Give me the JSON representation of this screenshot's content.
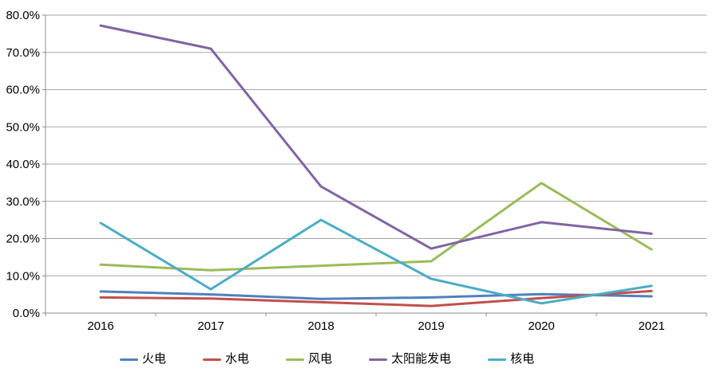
{
  "chart_data": {
    "type": "line",
    "title": "",
    "xlabel": "",
    "ylabel": "",
    "grid": true,
    "legend_position": "bottom",
    "categories": [
      "2016",
      "2017",
      "2018",
      "2019",
      "2020",
      "2021"
    ],
    "series": [
      {
        "name": "火电",
        "color": "#4F81BD",
        "values": [
          5.8,
          5.0,
          3.8,
          4.2,
          5.1,
          4.5
        ]
      },
      {
        "name": "水电",
        "color": "#C0504D",
        "values": [
          4.2,
          3.9,
          2.9,
          1.9,
          4.0,
          5.9
        ]
      },
      {
        "name": "风电",
        "color": "#9BBB59",
        "values": [
          13.0,
          11.5,
          12.7,
          13.9,
          34.9,
          17.1
        ]
      },
      {
        "name": "太阳能发电",
        "color": "#8064A2",
        "values": [
          77.2,
          71.0,
          34.0,
          17.3,
          24.4,
          21.3
        ]
      },
      {
        "name": "核电",
        "color": "#4BACC6",
        "values": [
          24.2,
          6.4,
          25.0,
          9.2,
          2.6,
          7.3
        ]
      }
    ],
    "y_axis": {
      "min": 0,
      "max": 80,
      "step": 10,
      "tick_labels": [
        "0.0%",
        "10.0%",
        "20.0%",
        "30.0%",
        "40.0%",
        "50.0%",
        "60.0%",
        "70.0%",
        "80.0%"
      ]
    },
    "colors": {
      "gridline": "#A6A6A6",
      "axis": "#8C8C8C",
      "text": "#000000",
      "background": "#FFFFFF"
    }
  }
}
